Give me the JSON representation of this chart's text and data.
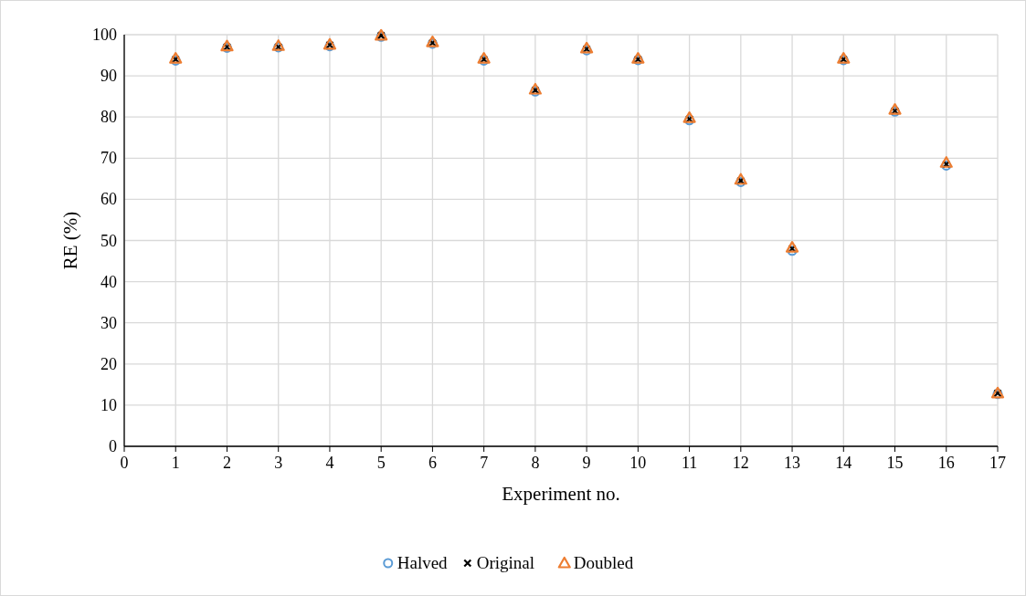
{
  "chart_data": {
    "type": "scatter",
    "xlabel": "Experiment no.",
    "ylabel": "RE (%)",
    "x": [
      1,
      2,
      3,
      4,
      5,
      6,
      7,
      8,
      9,
      10,
      11,
      12,
      13,
      14,
      15,
      16,
      17
    ],
    "xlim": [
      0,
      17
    ],
    "xticks": [
      0,
      1,
      2,
      3,
      4,
      5,
      6,
      7,
      8,
      9,
      10,
      11,
      12,
      13,
      14,
      15,
      16,
      17
    ],
    "ylim": [
      0,
      100
    ],
    "yticks": [
      0,
      10,
      20,
      30,
      40,
      50,
      60,
      70,
      80,
      90,
      100
    ],
    "grid": true,
    "legend": "bottom",
    "series": [
      {
        "name": "Halved",
        "color": "#5b9bd5",
        "marker": "circle",
        "values": [
          93.7,
          96.8,
          96.9,
          97.2,
          99.5,
          97.8,
          93.7,
          86.2,
          96.2,
          93.8,
          79.2,
          64.2,
          47.5,
          93.8,
          81.3,
          68.2,
          12.7
        ]
      },
      {
        "name": "Original",
        "color": "#000000",
        "marker": "cross",
        "values": [
          94,
          97,
          97,
          97.5,
          99.8,
          98,
          94,
          86.5,
          96.5,
          94,
          79.5,
          64.5,
          48,
          94,
          81.5,
          68.5,
          12.9
        ]
      },
      {
        "name": "Doubled",
        "color": "#ed7d31",
        "marker": "triangle",
        "values": [
          94.2,
          97.2,
          97.3,
          97.6,
          99.8,
          98.2,
          94.2,
          86.7,
          96.7,
          94.2,
          79.8,
          64.8,
          48.3,
          94.2,
          81.8,
          68.9,
          12.9
        ]
      }
    ]
  }
}
